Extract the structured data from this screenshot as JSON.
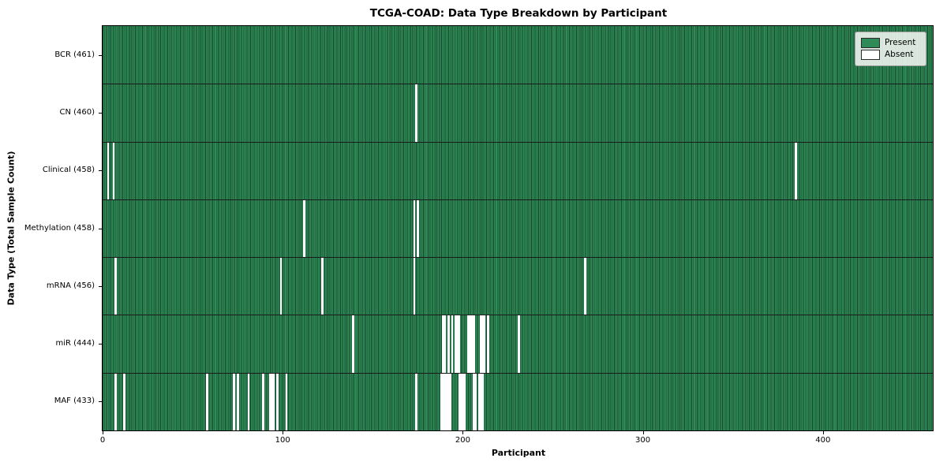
{
  "figure": {
    "background_color": "#ffffff"
  },
  "chart_data": {
    "type": "heatmap",
    "title": "TCGA-COAD: Data Type Breakdown by Participant",
    "xlabel": "Participant",
    "ylabel": "Data Type (Total Sample Count)",
    "x_ticks": [
      0,
      100,
      200,
      300,
      400
    ],
    "xlim": [
      0,
      461
    ],
    "total_participants": 461,
    "grid": false,
    "colors": {
      "present": "#2e8b57",
      "absent": "#ffffff",
      "bar_edge": "#16402a",
      "row_separator": "#1a1a1a"
    },
    "legend": {
      "position": "upper right",
      "entries": [
        {
          "label": "Present",
          "color": "#2e8b57"
        },
        {
          "label": "Absent",
          "color": "#ffffff"
        }
      ]
    },
    "rows": [
      {
        "data_type": "BCR",
        "label": "BCR (461)",
        "present_count": 461,
        "absent_count": 0,
        "absent_participants": []
      },
      {
        "data_type": "CN",
        "label": "CN (460)",
        "present_count": 460,
        "absent_count": 1,
        "absent_participants": [
          174
        ]
      },
      {
        "data_type": "Clinical",
        "label": "Clinical (458)",
        "present_count": 458,
        "absent_count": 3,
        "absent_participants": [
          3,
          6,
          385
        ]
      },
      {
        "data_type": "Methylation",
        "label": "Methylation (458)",
        "present_count": 458,
        "absent_count": 3,
        "absent_participants": [
          112,
          173,
          175
        ]
      },
      {
        "data_type": "mRNA",
        "label": "mRNA (456)",
        "present_count": 456,
        "absent_count": 5,
        "absent_participants": [
          7,
          99,
          122,
          173,
          268
        ]
      },
      {
        "data_type": "miR",
        "label": "miR (444)",
        "present_count": 444,
        "absent_count": 17,
        "absent_participants": [
          139,
          189,
          190,
          192,
          194,
          196,
          197,
          198,
          203,
          204,
          205,
          206,
          210,
          211,
          212,
          214,
          231
        ]
      },
      {
        "data_type": "MAF",
        "label": "MAF (433)",
        "present_count": 433,
        "absent_count": 28,
        "absent_participants": [
          7,
          12,
          58,
          73,
          75,
          81,
          89,
          93,
          94,
          95,
          97,
          102,
          174,
          188,
          189,
          190,
          191,
          192,
          193,
          198,
          199,
          200,
          201,
          206,
          207,
          209,
          210,
          211
        ]
      }
    ]
  }
}
